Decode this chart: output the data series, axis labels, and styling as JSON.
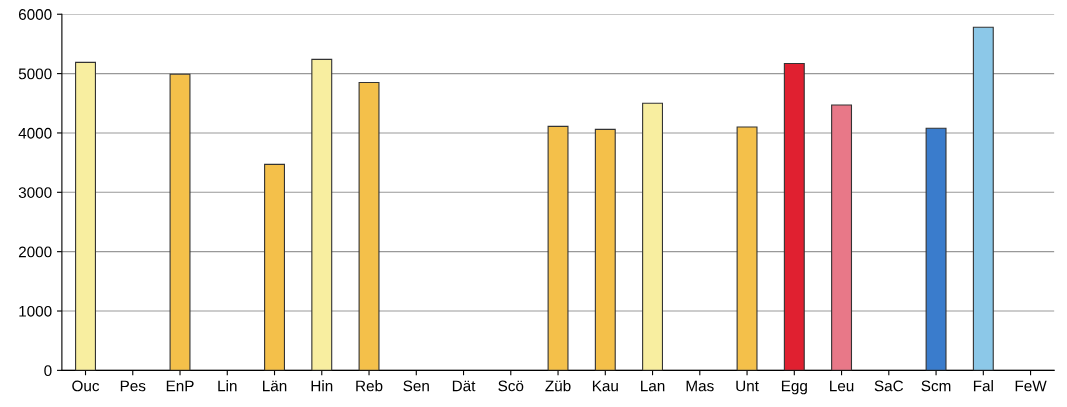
{
  "chart_data": {
    "type": "bar",
    "categories": [
      "Ouc",
      "Pes",
      "EnP",
      "Lin",
      "Län",
      "Hin",
      "Reb",
      "Sen",
      "Dät",
      "Scö",
      "Züb",
      "Kau",
      "Lan",
      "Mas",
      "Unt",
      "Egg",
      "Leu",
      "SaC",
      "Scm",
      "Fal",
      "FeW"
    ],
    "values": [
      5190,
      null,
      4990,
      null,
      3470,
      5240,
      4850,
      null,
      null,
      null,
      4110,
      4060,
      4500,
      null,
      4100,
      5170,
      4470,
      null,
      4080,
      5780,
      null
    ],
    "colors": [
      "#f8eea0",
      "#f4c04a",
      "#f4c04a",
      "#f4c04a",
      "#f4c04a",
      "#f8eea0",
      "#f4c04a",
      "#f4c04a",
      "#f4c04a",
      "#f4c04a",
      "#f4c04a",
      "#f4c04a",
      "#f8eea0",
      "#f4c04a",
      "#f4c04a",
      "#e02030",
      "#e87888",
      "#f4c04a",
      "#3a7ccc",
      "#8cc8e8",
      "#f4c04a"
    ],
    "ylim": [
      0,
      6000
    ],
    "yticks": [
      0,
      1000,
      2000,
      3000,
      4000,
      5000,
      6000
    ],
    "grid": "y"
  }
}
